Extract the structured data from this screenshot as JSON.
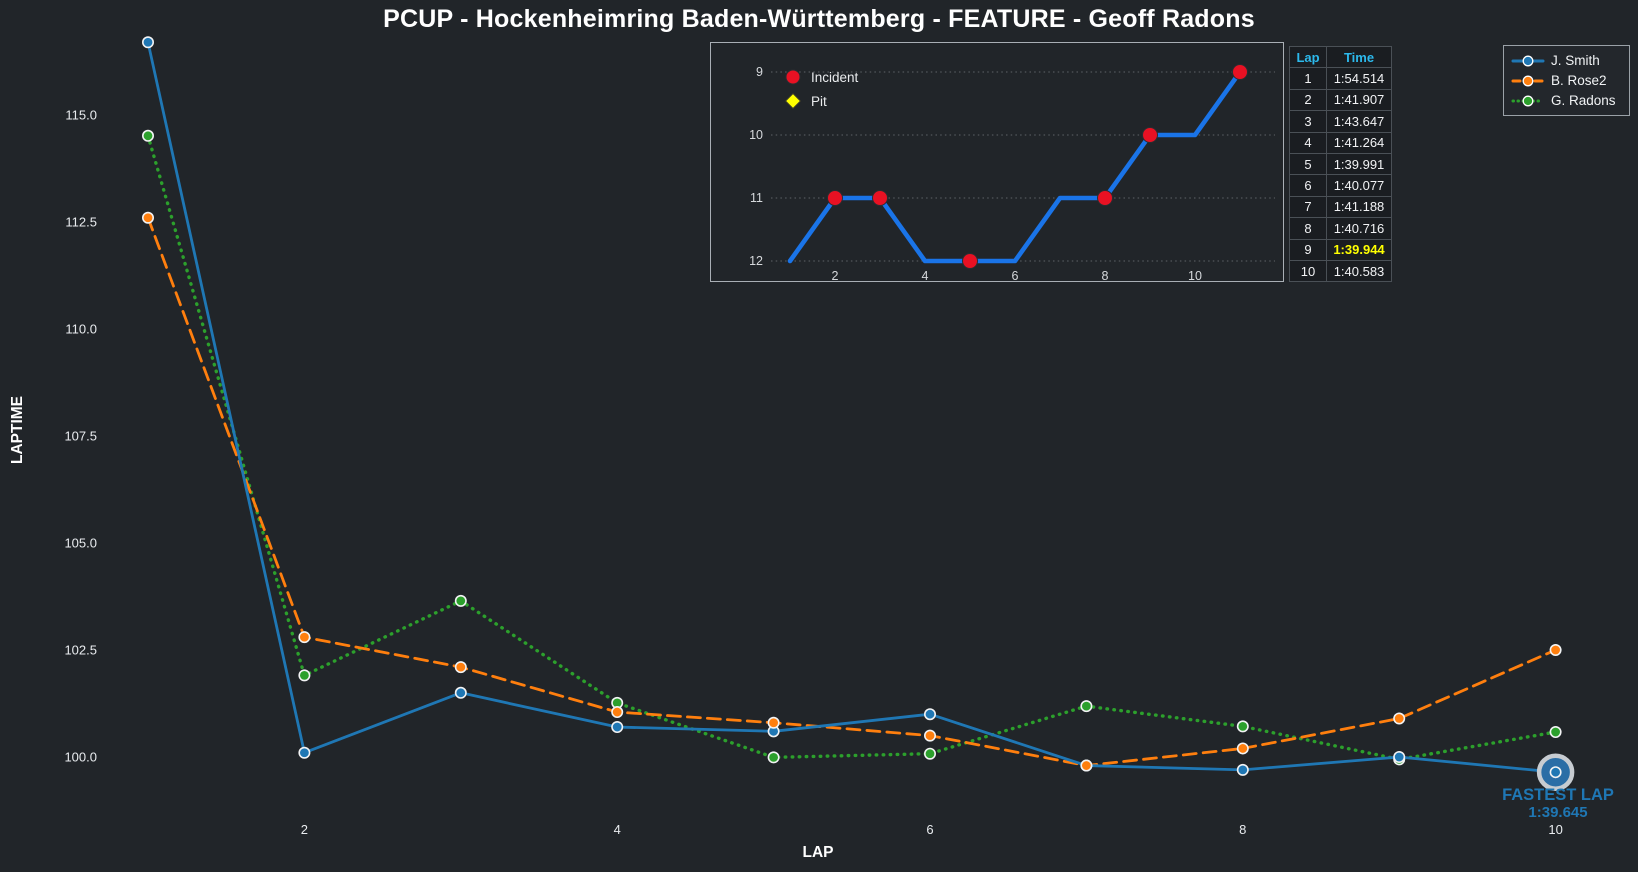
{
  "page": {
    "title": "PCUP - Hockenheimring Baden-Württemberg - FEATURE - Geoff Radons"
  },
  "colors": {
    "background": "#212529",
    "blue": "#1f77b4",
    "orange": "#ff7f0e",
    "green": "#2ca02c",
    "incident_red": "#e81123",
    "pit_yellow": "#ffff00",
    "table_header_cyan": "#2cb9ec",
    "fastest_yellow": "#ffff00",
    "inset_line_blue": "#1a74e8",
    "tick_text": "#e9ecef"
  },
  "chart_data": [
    {
      "id": "laptimes",
      "type": "line",
      "title": "PCUP - Hockenheimring Baden-Württemberg - FEATURE - Geoff Radons",
      "xlabel": "LAP",
      "ylabel": "LAPTIME",
      "x": [
        1,
        2,
        3,
        4,
        5,
        6,
        7,
        8,
        9,
        10
      ],
      "xticks": [
        2,
        4,
        6,
        8,
        10
      ],
      "yticks": [
        100.0,
        102.5,
        105.0,
        107.5,
        110.0,
        112.5,
        115.0
      ],
      "ylim": [
        99.4,
        117.7
      ],
      "grid": false,
      "legend_position": "top-right",
      "series": [
        {
          "name": "J. Smith",
          "color": "#1f77b4",
          "line_style": "solid",
          "values": [
            116.7,
            100.1,
            101.5,
            100.7,
            100.6,
            101.0,
            99.8,
            99.7,
            100.0,
            99.645
          ]
        },
        {
          "name": "B. Rose2",
          "color": "#ff7f0e",
          "line_style": "dashed",
          "values": [
            112.6,
            102.8,
            102.1,
            101.05,
            100.8,
            100.5,
            99.8,
            100.2,
            100.9,
            102.5
          ]
        },
        {
          "name": "G. Radons",
          "color": "#2ca02c",
          "line_style": "dotted",
          "values": [
            114.514,
            101.907,
            103.647,
            101.264,
            99.991,
            100.077,
            101.188,
            100.716,
            99.944,
            100.583
          ]
        }
      ],
      "annotation": {
        "series": "J. Smith",
        "lap": 10,
        "value": 99.645,
        "line1": "FASTEST LAP",
        "line2": "1:39.645"
      }
    },
    {
      "id": "position",
      "type": "line",
      "title": "",
      "xlabel": "",
      "ylabel": "",
      "x": [
        1,
        2,
        3,
        4,
        5,
        6,
        7,
        8,
        9,
        10,
        11
      ],
      "values": [
        12,
        11,
        11,
        12,
        12,
        12,
        11,
        11,
        10,
        10,
        9
      ],
      "incident_laps": [
        2,
        3,
        5,
        8,
        9,
        11
      ],
      "pit_laps": [],
      "xticks": [
        2,
        4,
        6,
        8,
        10
      ],
      "yticks": [
        9,
        10,
        11,
        12
      ],
      "y_inverted": true,
      "grid": true,
      "legend": [
        {
          "label": "Incident",
          "marker": "circle",
          "color": "#e81123"
        },
        {
          "label": "Pit",
          "marker": "diamond",
          "color": "#ffff00"
        }
      ]
    }
  ],
  "lap_table": {
    "headers": [
      "Lap",
      "Time"
    ],
    "rows": [
      [
        "1",
        "1:54.514"
      ],
      [
        "2",
        "1:41.907"
      ],
      [
        "3",
        "1:43.647"
      ],
      [
        "4",
        "1:41.264"
      ],
      [
        "5",
        "1:39.991"
      ],
      [
        "6",
        "1:40.077"
      ],
      [
        "7",
        "1:41.188"
      ],
      [
        "8",
        "1:40.716"
      ],
      [
        "9",
        "1:39.944"
      ],
      [
        "10",
        "1:40.583"
      ]
    ],
    "fastest_row_index": 8
  }
}
